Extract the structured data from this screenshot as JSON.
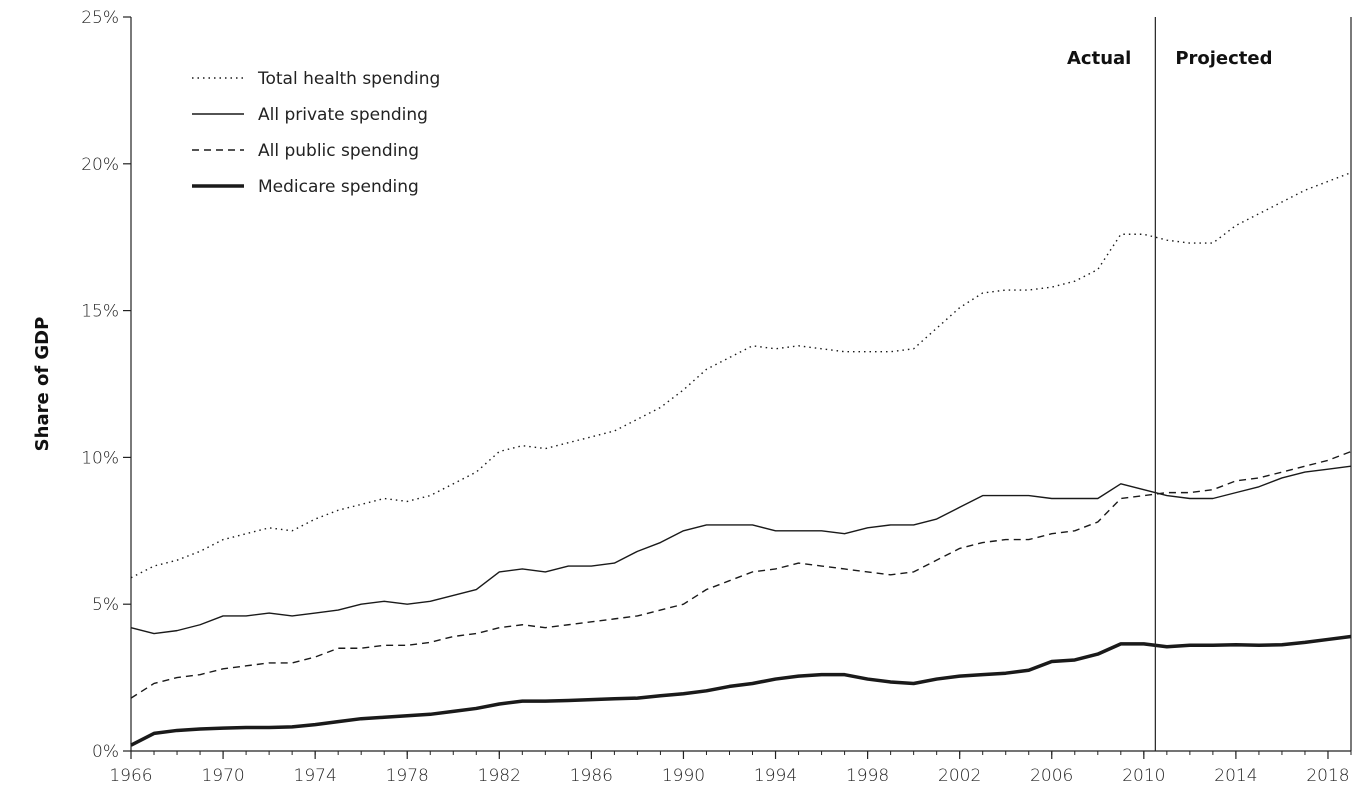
{
  "chart_data": {
    "type": "line",
    "ylabel": "Share of GDP",
    "xlabel": "",
    "ylim": [
      0,
      25
    ],
    "xlim": [
      1966,
      2019
    ],
    "y_ticks": [
      "0%",
      "5%",
      "10%",
      "15%",
      "20%",
      "25%"
    ],
    "y_tick_values": [
      0,
      5,
      10,
      15,
      20,
      25
    ],
    "x_ticks": [
      "1966",
      "1970",
      "1974",
      "1978",
      "1982",
      "1986",
      "1990",
      "1994",
      "1998",
      "2002",
      "2006",
      "2010",
      "2014",
      "2018"
    ],
    "x_tick_values": [
      1966,
      1970,
      1974,
      1978,
      1982,
      1986,
      1990,
      1994,
      1998,
      2002,
      2006,
      2010,
      2014,
      2018
    ],
    "divider_year": 2010.5,
    "annotations": {
      "actual": "Actual",
      "projected": "Projected"
    },
    "grid": false,
    "legend_position": "top-left",
    "x": [
      1966,
      1967,
      1968,
      1969,
      1970,
      1971,
      1972,
      1973,
      1974,
      1975,
      1976,
      1977,
      1978,
      1979,
      1980,
      1981,
      1982,
      1983,
      1984,
      1985,
      1986,
      1987,
      1988,
      1989,
      1990,
      1991,
      1992,
      1993,
      1994,
      1995,
      1996,
      1997,
      1998,
      1999,
      2000,
      2001,
      2002,
      2003,
      2004,
      2005,
      2006,
      2007,
      2008,
      2009,
      2010,
      2011,
      2012,
      2013,
      2014,
      2015,
      2016,
      2017,
      2018,
      2019
    ],
    "series": [
      {
        "name": "Total health spending",
        "style": "dotted",
        "values": [
          5.9,
          6.3,
          6.5,
          6.8,
          7.2,
          7.4,
          7.6,
          7.5,
          7.9,
          8.2,
          8.4,
          8.6,
          8.5,
          8.7,
          9.1,
          9.5,
          10.2,
          10.4,
          10.3,
          10.5,
          10.7,
          10.9,
          11.3,
          11.7,
          12.3,
          13.0,
          13.4,
          13.8,
          13.7,
          13.8,
          13.7,
          13.6,
          13.6,
          13.6,
          13.7,
          14.4,
          15.1,
          15.6,
          15.7,
          15.7,
          15.8,
          16.0,
          16.4,
          17.6,
          17.6,
          17.4,
          17.3,
          17.3,
          17.9,
          18.3,
          18.7,
          19.1,
          19.4,
          19.7
        ]
      },
      {
        "name": "All private spending",
        "style": "solid",
        "values": [
          4.2,
          4.0,
          4.1,
          4.3,
          4.6,
          4.6,
          4.7,
          4.6,
          4.7,
          4.8,
          5.0,
          5.1,
          5.0,
          5.1,
          5.3,
          5.5,
          6.1,
          6.2,
          6.1,
          6.3,
          6.3,
          6.4,
          6.8,
          7.1,
          7.5,
          7.7,
          7.7,
          7.7,
          7.5,
          7.5,
          7.5,
          7.4,
          7.6,
          7.7,
          7.7,
          7.9,
          8.3,
          8.7,
          8.7,
          8.7,
          8.6,
          8.6,
          8.6,
          9.1,
          8.9,
          8.7,
          8.6,
          8.6,
          8.8,
          9.0,
          9.3,
          9.5,
          9.6,
          9.7
        ]
      },
      {
        "name": "All public spending",
        "style": "dashed",
        "values": [
          1.8,
          2.3,
          2.5,
          2.6,
          2.8,
          2.9,
          3.0,
          3.0,
          3.2,
          3.5,
          3.5,
          3.6,
          3.6,
          3.7,
          3.9,
          4.0,
          4.2,
          4.3,
          4.2,
          4.3,
          4.4,
          4.5,
          4.6,
          4.8,
          5.0,
          5.5,
          5.8,
          6.1,
          6.2,
          6.4,
          6.3,
          6.2,
          6.1,
          6.0,
          6.1,
          6.5,
          6.9,
          7.1,
          7.2,
          7.2,
          7.4,
          7.5,
          7.8,
          8.6,
          8.7,
          8.8,
          8.8,
          8.9,
          9.2,
          9.3,
          9.5,
          9.7,
          9.9,
          10.2
        ]
      },
      {
        "name": "Medicare spending",
        "style": "thick",
        "values": [
          0.2,
          0.6,
          0.7,
          0.75,
          0.78,
          0.8,
          0.8,
          0.82,
          0.9,
          1.0,
          1.1,
          1.15,
          1.2,
          1.25,
          1.35,
          1.45,
          1.6,
          1.7,
          1.7,
          1.72,
          1.75,
          1.78,
          1.8,
          1.88,
          1.95,
          2.05,
          2.2,
          2.3,
          2.45,
          2.55,
          2.6,
          2.6,
          2.45,
          2.35,
          2.3,
          2.45,
          2.55,
          2.6,
          2.65,
          2.75,
          3.05,
          3.1,
          3.3,
          3.65,
          3.65,
          3.55,
          3.6,
          3.6,
          3.62,
          3.6,
          3.62,
          3.7,
          3.8,
          3.9
        ]
      }
    ]
  }
}
